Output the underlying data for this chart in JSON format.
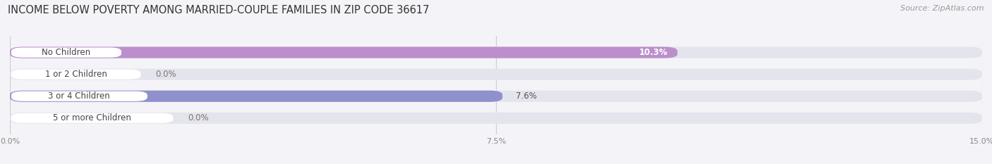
{
  "title": "INCOME BELOW POVERTY AMONG MARRIED-COUPLE FAMILIES IN ZIP CODE 36617",
  "source": "Source: ZipAtlas.com",
  "categories": [
    "No Children",
    "1 or 2 Children",
    "3 or 4 Children",
    "5 or more Children"
  ],
  "values": [
    10.3,
    0.0,
    7.6,
    0.0
  ],
  "bar_colors": [
    "#bc8fcc",
    "#5bbfb8",
    "#9090cc",
    "#f4a0b8"
  ],
  "bg_color": "#f4f4f8",
  "bar_bg_color": "#e4e4ec",
  "xlim": [
    0,
    15.0
  ],
  "xticks": [
    0.0,
    7.5,
    15.0
  ],
  "xticklabels": [
    "0.0%",
    "7.5%",
    "15.0%"
  ],
  "bar_height": 0.52,
  "figsize": [
    14.06,
    2.33
  ],
  "dpi": 100,
  "title_fontsize": 10.5,
  "source_fontsize": 8,
  "label_fontsize": 8.5,
  "value_fontsize": 8.5,
  "tick_fontsize": 8
}
